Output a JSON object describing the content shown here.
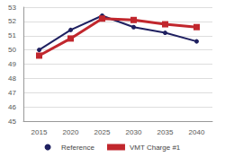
{
  "chart_data": {
    "type": "line",
    "categories": [
      "2015",
      "2020",
      "2025",
      "2030",
      "2035",
      "2040"
    ],
    "series": [
      {
        "name": "Reference",
        "color": "#1f2060",
        "marker": "circle",
        "values": [
          50.0,
          51.4,
          52.4,
          51.6,
          51.2,
          50.6
        ]
      },
      {
        "name": "VMT Charge #1",
        "color": "#c1272d",
        "marker": "square",
        "values": [
          49.6,
          50.8,
          52.2,
          52.1,
          51.8,
          51.6
        ]
      }
    ],
    "ylim": [
      45,
      53
    ],
    "yticks": [
      45,
      46,
      47,
      48,
      49,
      50,
      51,
      52,
      53
    ],
    "grid": true,
    "legend": "bottom"
  }
}
